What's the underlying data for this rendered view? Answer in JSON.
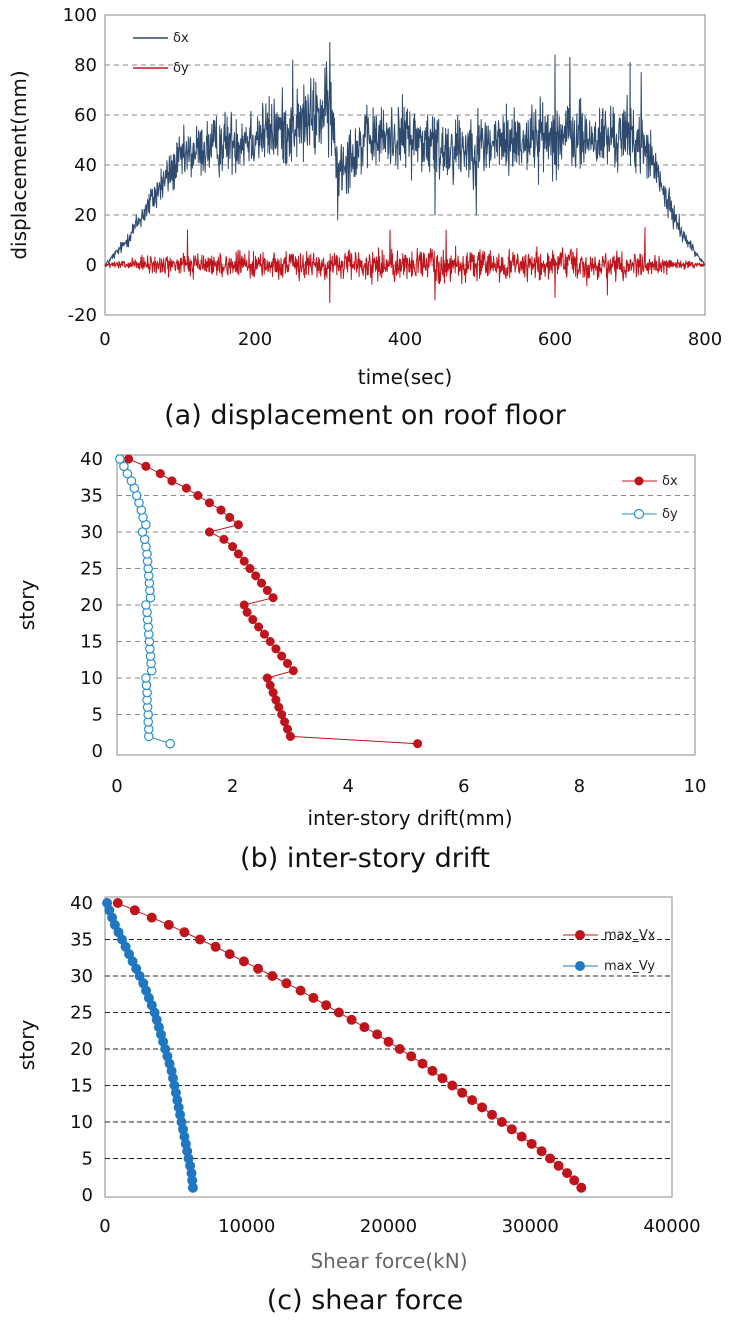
{
  "chart_data": [
    {
      "type": "line",
      "caption": "(a) displacement on roof floor",
      "xlabel": "time(sec)",
      "ylabel": "displacement(mm)",
      "xlim": [
        0,
        800
      ],
      "ylim": [
        -20,
        100
      ],
      "xticks": [
        0,
        200,
        400,
        600,
        800
      ],
      "yticks": [
        -20,
        0,
        20,
        40,
        60,
        80,
        100
      ],
      "grid": "horizontal dashed",
      "legend_position": "top-left",
      "series": [
        {
          "name": "δx",
          "color": "#2e4a6e",
          "x": [
            0,
            25,
            50,
            75,
            100,
            125,
            150,
            200,
            250,
            300,
            310,
            350,
            400,
            450,
            500,
            550,
            600,
            650,
            700,
            725,
            750,
            775,
            800
          ],
          "y": [
            0,
            8,
            20,
            32,
            42,
            46,
            48,
            52,
            55,
            62,
            40,
            50,
            52,
            47,
            48,
            50,
            52,
            50,
            52,
            45,
            25,
            10,
            0
          ],
          "amplitude": [
            1,
            4,
            8,
            12,
            15,
            17,
            18,
            20,
            22,
            26,
            20,
            18,
            20,
            22,
            20,
            20,
            22,
            20,
            20,
            16,
            9,
            4,
            1
          ],
          "peaks_max": [
            [
              300,
              89
            ],
            [
              250,
              82
            ],
            [
              600,
              84
            ],
            [
              620,
              83
            ],
            [
              700,
              81
            ],
            [
              715,
              77
            ]
          ],
          "peaks_min": [
            [
              310,
              18
            ],
            [
              440,
              20
            ],
            [
              495,
              20
            ]
          ]
        },
        {
          "name": "δy",
          "color": "#c0141c",
          "x": [
            0,
            50,
            100,
            200,
            300,
            400,
            450,
            500,
            600,
            700,
            750,
            800
          ],
          "y": [
            0,
            0,
            0,
            0,
            0,
            0,
            0,
            0,
            0,
            0,
            0,
            0
          ],
          "amplitude": [
            1,
            5,
            7,
            7,
            8,
            9,
            10,
            9,
            10,
            8,
            5,
            1
          ],
          "peaks_max": [
            [
              110,
              14
            ],
            [
              380,
              14
            ],
            [
              455,
              14
            ],
            [
              720,
              15
            ]
          ],
          "peaks_min": [
            [
              300,
              -15
            ],
            [
              440,
              -14
            ],
            [
              600,
              -13
            ],
            [
              670,
              -12
            ]
          ]
        }
      ]
    },
    {
      "type": "line",
      "caption": "(b) inter-story drift",
      "xlabel": "inter-story drift(mm)",
      "ylabel": "story",
      "xlim": [
        0,
        10
      ],
      "ylim": [
        0,
        40
      ],
      "xticks": [
        0,
        2,
        4,
        6,
        8,
        10
      ],
      "yticks": [
        0,
        5,
        10,
        15,
        20,
        25,
        30,
        35,
        40
      ],
      "grid": "horizontal dashed",
      "legend_position": "top-right",
      "series": [
        {
          "name": "δx",
          "color": "#c0141c",
          "marker": "filled-circle",
          "story": [
            1,
            2,
            3,
            4,
            5,
            6,
            7,
            8,
            9,
            10,
            11,
            12,
            13,
            14,
            15,
            16,
            17,
            18,
            19,
            20,
            21,
            22,
            23,
            24,
            25,
            26,
            27,
            28,
            29,
            30,
            31,
            32,
            33,
            34,
            35,
            36,
            37,
            38,
            39,
            40
          ],
          "drift": [
            5.2,
            3.0,
            2.95,
            2.9,
            2.85,
            2.8,
            2.75,
            2.7,
            2.65,
            2.6,
            3.05,
            2.95,
            2.85,
            2.75,
            2.65,
            2.55,
            2.45,
            2.35,
            2.25,
            2.2,
            2.7,
            2.6,
            2.5,
            2.4,
            2.3,
            2.2,
            2.1,
            2.0,
            1.85,
            1.6,
            2.1,
            1.95,
            1.8,
            1.6,
            1.4,
            1.2,
            0.95,
            0.75,
            0.5,
            0.2
          ]
        },
        {
          "name": "δy",
          "color": "#2a8fcf",
          "marker": "open-circle",
          "story": [
            1,
            2,
            3,
            4,
            5,
            6,
            7,
            8,
            9,
            10,
            11,
            12,
            13,
            14,
            15,
            16,
            17,
            18,
            19,
            20,
            21,
            22,
            23,
            24,
            25,
            26,
            27,
            28,
            29,
            30,
            31,
            32,
            33,
            34,
            35,
            36,
            37,
            38,
            39,
            40
          ],
          "drift": [
            0.92,
            0.55,
            0.55,
            0.54,
            0.54,
            0.53,
            0.52,
            0.52,
            0.51,
            0.5,
            0.6,
            0.59,
            0.58,
            0.57,
            0.56,
            0.55,
            0.54,
            0.53,
            0.52,
            0.5,
            0.58,
            0.57,
            0.56,
            0.55,
            0.54,
            0.53,
            0.52,
            0.5,
            0.48,
            0.44,
            0.5,
            0.45,
            0.42,
            0.38,
            0.34,
            0.3,
            0.25,
            0.18,
            0.12,
            0.05
          ]
        }
      ]
    },
    {
      "type": "line",
      "caption": "(c) shear force",
      "xlabel": "Shear force(kN)",
      "ylabel": "story",
      "xlim": [
        0,
        40000
      ],
      "ylim": [
        0,
        40
      ],
      "xticks": [
        0,
        10000,
        20000,
        30000,
        40000
      ],
      "yticks": [
        0,
        5,
        10,
        15,
        20,
        25,
        30,
        35,
        40
      ],
      "grid": "horizontal dashed",
      "legend_position": "top-right",
      "series": [
        {
          "name": "max_Vx",
          "color": "#c0141c",
          "marker": "filled-circle",
          "story": [
            1,
            2,
            3,
            4,
            5,
            6,
            7,
            8,
            9,
            10,
            11,
            12,
            13,
            14,
            15,
            16,
            17,
            18,
            19,
            20,
            21,
            22,
            23,
            24,
            25,
            26,
            27,
            28,
            29,
            30,
            31,
            32,
            33,
            34,
            35,
            36,
            37,
            38,
            39,
            40
          ],
          "force": [
            33600,
            33100,
            32600,
            32000,
            31400,
            30800,
            30100,
            29400,
            28700,
            28000,
            27300,
            26600,
            25900,
            25200,
            24500,
            23800,
            23100,
            22400,
            21600,
            20800,
            20000,
            19200,
            18300,
            17400,
            16500,
            15600,
            14700,
            13800,
            12800,
            11800,
            10800,
            9800,
            8800,
            7800,
            6700,
            5600,
            4500,
            3300,
            2100,
            900
          ]
        },
        {
          "name": "max_Vy",
          "color": "#1f77c2",
          "marker": "filled-circle",
          "story": [
            1,
            2,
            3,
            4,
            5,
            6,
            7,
            8,
            9,
            10,
            11,
            12,
            13,
            14,
            15,
            16,
            17,
            18,
            19,
            20,
            21,
            22,
            23,
            24,
            25,
            26,
            27,
            28,
            29,
            30,
            31,
            32,
            33,
            34,
            35,
            36,
            37,
            38,
            39,
            40
          ],
          "force": [
            6200,
            6150,
            6100,
            6000,
            5900,
            5800,
            5700,
            5600,
            5500,
            5400,
            5300,
            5200,
            5100,
            5000,
            4900,
            4800,
            4700,
            4550,
            4400,
            4250,
            4100,
            3950,
            3800,
            3650,
            3500,
            3300,
            3100,
            2900,
            2700,
            2450,
            2200,
            1950,
            1700,
            1450,
            1200,
            950,
            700,
            500,
            300,
            150
          ]
        }
      ]
    }
  ]
}
